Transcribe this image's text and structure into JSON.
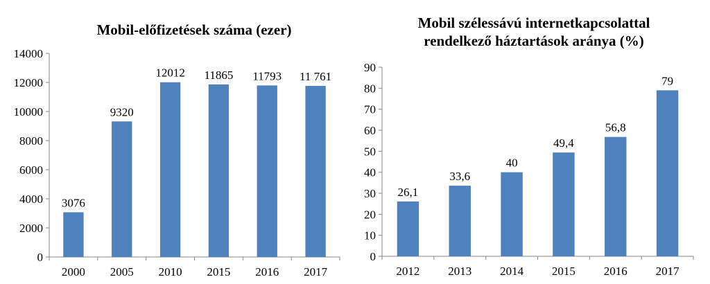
{
  "chart_data": [
    {
      "type": "bar",
      "title": "Mobil-előfizetések száma (ezer)",
      "categories": [
        "2000",
        "2005",
        "2010",
        "2015",
        "2016",
        "2017"
      ],
      "values": [
        3076,
        9320,
        12012,
        11865,
        11793,
        11761
      ],
      "data_labels": [
        "3076",
        "9320",
        "12012",
        "11865",
        "11793",
        "11 761"
      ],
      "y_ticks": [
        "0",
        "2000",
        "4000",
        "6000",
        "8000",
        "10000",
        "12000",
        "14000"
      ],
      "ylim": [
        0,
        14000
      ],
      "xlabel": "",
      "ylabel": "",
      "grid": false,
      "bar_color": "#4F81BD"
    },
    {
      "type": "bar",
      "title": "Mobil szélessávú internetkapcsolattal rendelkező háztartások aránya (%)",
      "title_lines": [
        "Mobil szélessávú internetkapcsolattal",
        "rendelkező háztartások aránya (%)"
      ],
      "categories": [
        "2012",
        "2013",
        "2014",
        "2015",
        "2016",
        "2017"
      ],
      "values": [
        26.1,
        33.6,
        40,
        49.4,
        56.8,
        79
      ],
      "data_labels": [
        "26,1",
        "33,6",
        "40",
        "49,4",
        "56,8",
        "79"
      ],
      "y_ticks": [
        "0",
        "10",
        "20",
        "30",
        "40",
        "50",
        "60",
        "70",
        "80",
        "90"
      ],
      "ylim": [
        0,
        90
      ],
      "xlabel": "",
      "ylabel": "",
      "grid": false,
      "bar_color": "#4F81BD"
    }
  ]
}
